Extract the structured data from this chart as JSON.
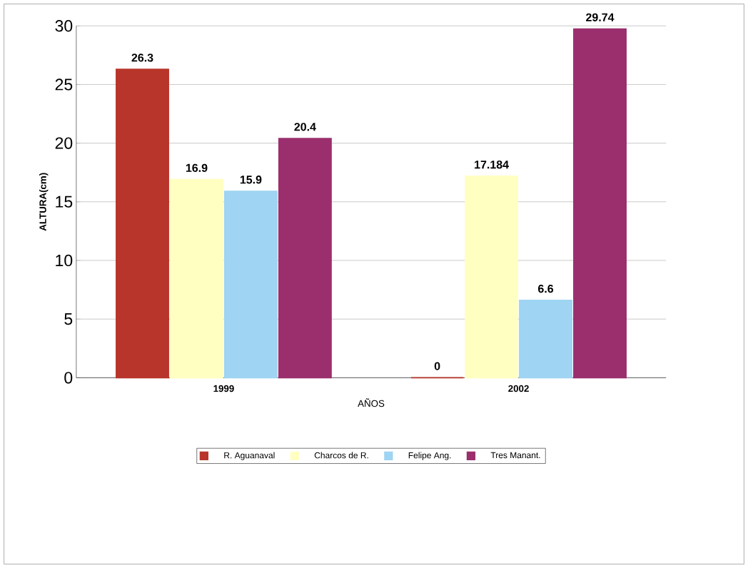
{
  "chart_data": {
    "type": "bar",
    "ylabel": "ALTURA(cm)",
    "xlabel": "AÑOS",
    "categories": [
      "1999",
      "2002"
    ],
    "series": [
      {
        "name": "R. Aguanaval",
        "color": "#b8352b",
        "values": [
          26.3,
          0
        ]
      },
      {
        "name": "Charcos de R.",
        "color": "#ffffc2",
        "values": [
          16.9,
          17.184
        ]
      },
      {
        "name": "Felipe Ang.",
        "color": "#9fd4f2",
        "values": [
          15.9,
          6.6
        ]
      },
      {
        "name": "Tres Manant.",
        "color": "#9b2f6e",
        "values": [
          20.4,
          29.74
        ]
      }
    ],
    "ylim": [
      0,
      30
    ],
    "yticks": [
      0,
      5,
      10,
      15,
      20,
      25,
      30
    ],
    "grid": "y",
    "legend": "bottom",
    "data_labels": true
  }
}
